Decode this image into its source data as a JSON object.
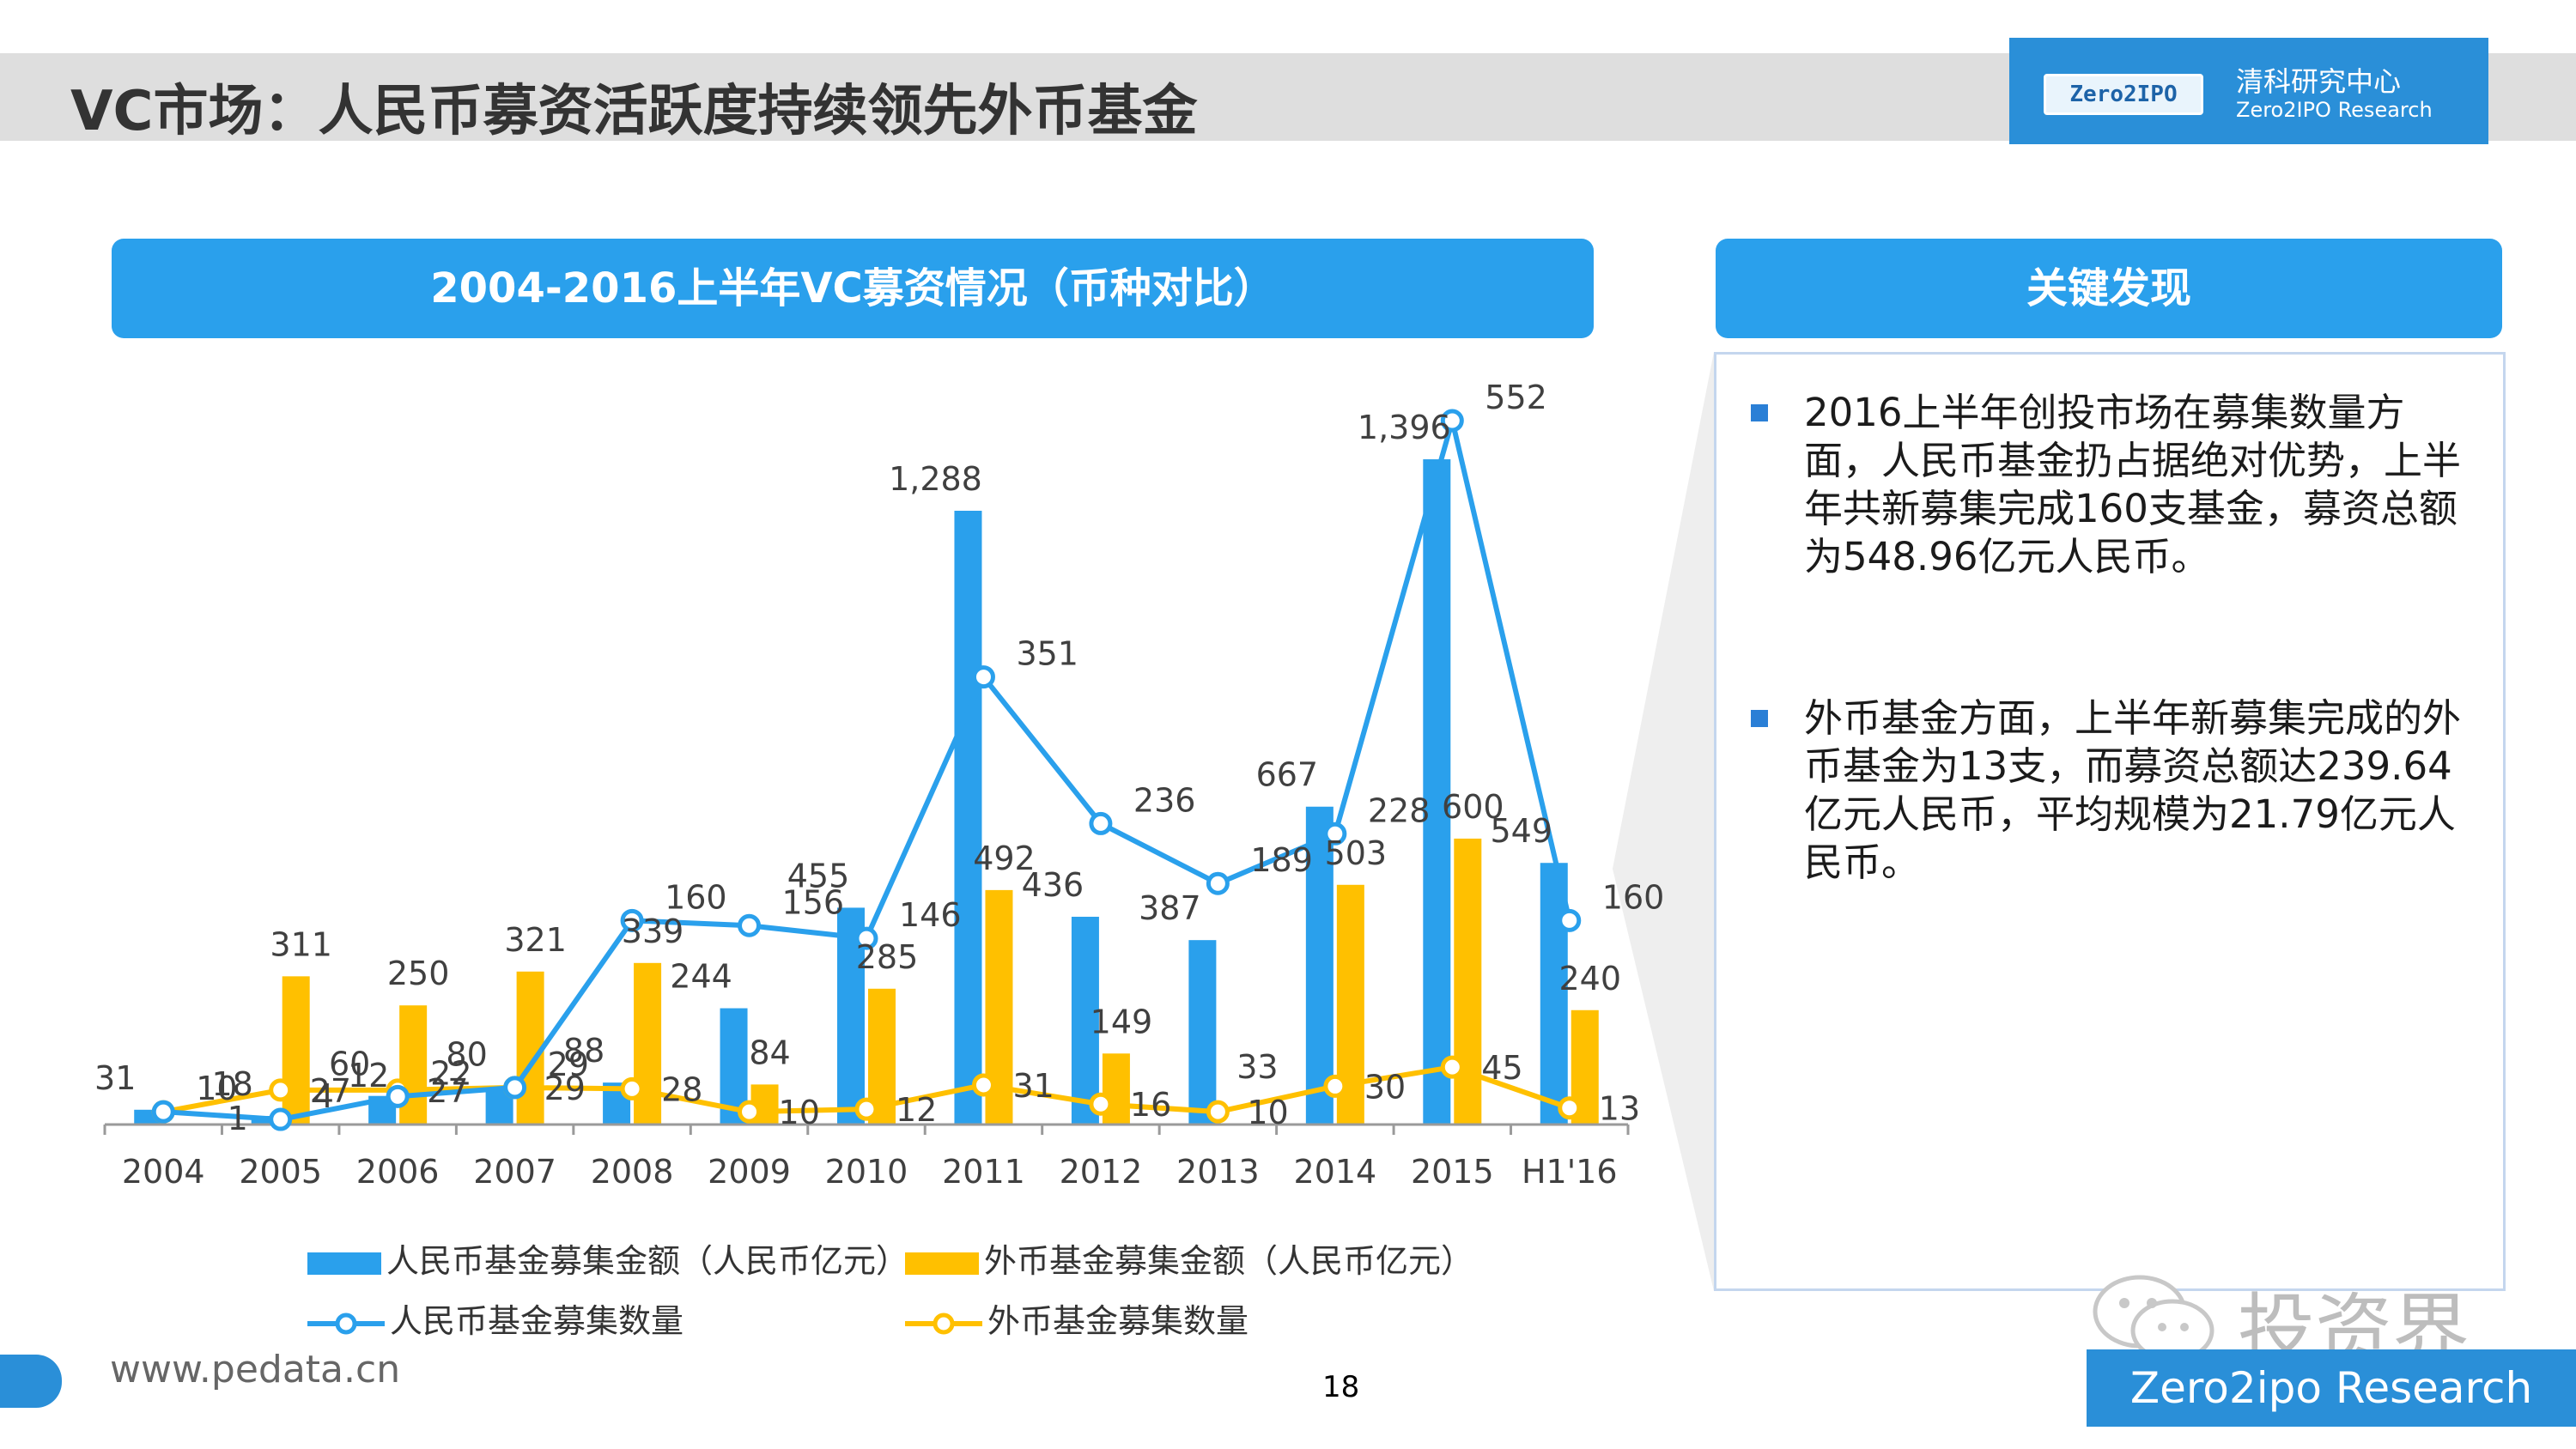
{
  "page": {
    "title": "VC市场：人民币募资活跃度持续领先外币基金",
    "logo_mark": "Zero2IPO",
    "logo_cn": "清科研究中心",
    "logo_en": "Zero2IPO Research",
    "footer_url": "www.pedata.cn",
    "page_number": "18",
    "watermark": "投资界",
    "footer_brand": "Zero2ipo Research"
  },
  "chart_header": "2004-2016上半年VC募资情况（币种对比）",
  "findings": {
    "header": "关键发现",
    "items": [
      "2016上半年创投市场在募集数量方面，人民币基金扔占据绝对优势，上半年共新募集完成160支基金，募资总额为548.96亿元人民币。",
      "外币基金方面，上半年新募集完成的外币基金为13支，而募资总额达239.64亿元人民币，平均规模为21.79亿元人民币。"
    ]
  },
  "colors": {
    "rmb": "#2aa0ec",
    "usd": "#ffc000",
    "accent": "#2a8fd8"
  },
  "chart_data": {
    "type": "bar",
    "categories": [
      "2004",
      "2005",
      "2006",
      "2007",
      "2008",
      "2009",
      "2010",
      "2011",
      "2012",
      "2013",
      "2014",
      "2015",
      "H1'16"
    ],
    "series": [
      {
        "name": "人民币基金募集金额（人民币亿元）",
        "type": "bar",
        "axis": "left",
        "values": [
          31,
          18,
          60,
          80,
          88,
          244,
          455,
          1288,
          436,
          387,
          667,
          1396,
          549
        ],
        "labels": [
          "31",
          "18",
          "60",
          "80",
          "88",
          "244",
          "455",
          "1,288",
          "436",
          "387",
          "667",
          "1,396",
          "549"
        ]
      },
      {
        "name": "外币基金募集金额（人民币亿元）",
        "type": "bar",
        "axis": "left",
        "values": [
          0,
          311,
          250,
          321,
          339,
          84,
          285,
          492,
          149,
          0,
          503,
          600,
          240
        ],
        "labels": [
          "",
          "311",
          "250",
          "321",
          "339",
          "84",
          "285",
          "492",
          "149",
          "",
          "503",
          "600",
          "240"
        ]
      },
      {
        "name": "人民币基金募集数量",
        "type": "line",
        "axis": "right",
        "values": [
          10,
          4,
          22,
          29,
          160,
          156,
          146,
          351,
          236,
          189,
          228,
          552,
          160
        ],
        "labels": [
          "10",
          "4",
          "22",
          "29",
          "160",
          "156",
          "146",
          "351",
          "236",
          "189",
          "228",
          "552",
          "160"
        ]
      },
      {
        "name": "外币基金募集数量",
        "type": "line",
        "axis": "right",
        "values": [
          10,
          27,
          27,
          29,
          28,
          10,
          12,
          31,
          16,
          10,
          30,
          45,
          13
        ],
        "labels": [
          "",
          "27",
          "27",
          "29",
          "28",
          "10",
          "12",
          "31",
          "16",
          "10",
          "30",
          "45",
          "13"
        ]
      }
    ],
    "extra_labels": [
      "12",
      "33",
      "1"
    ],
    "legend_position": "bottom",
    "grid": false
  }
}
